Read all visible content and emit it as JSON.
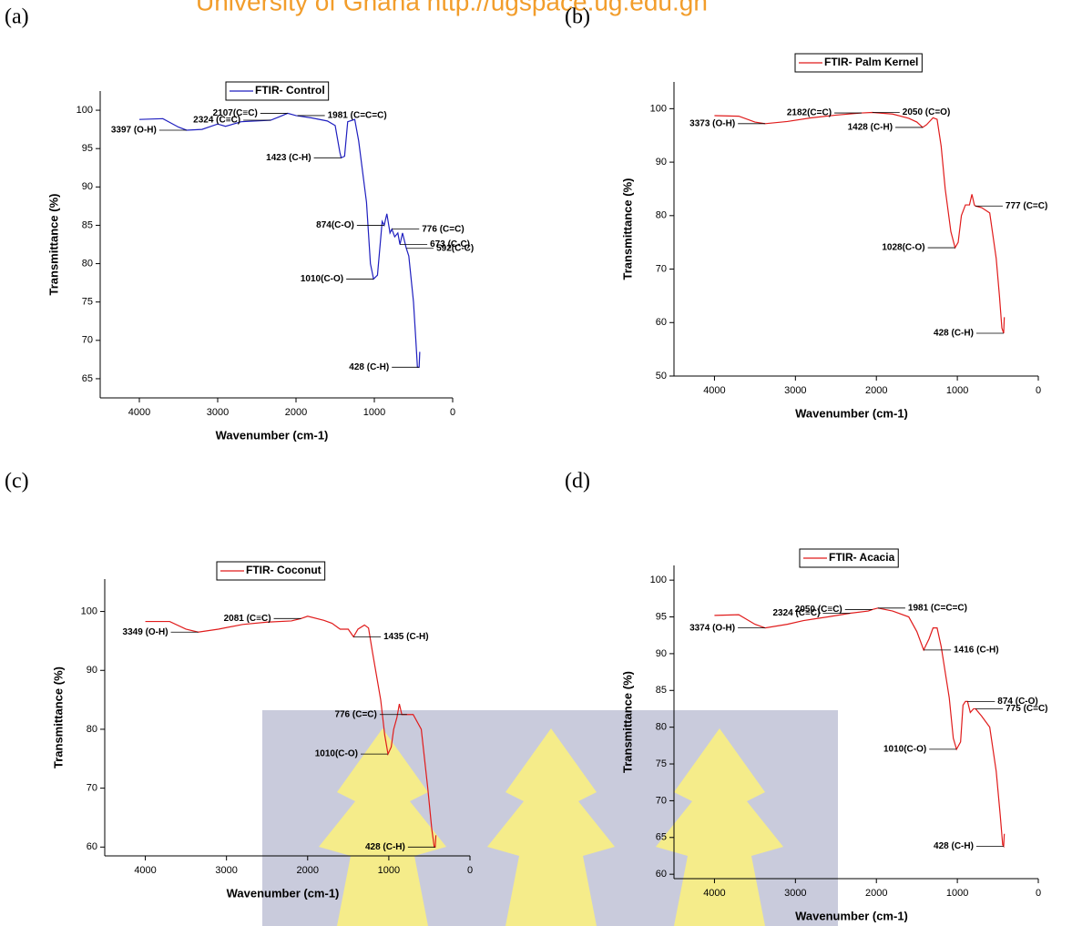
{
  "watermark": "University of Ghana http://ugspace.ug.edu.gh",
  "chart_data": [
    {
      "type": "line",
      "panel": "(a)",
      "xlabel": "Wavenumber (cm-1)",
      "ylabel": "Transmittance (%)",
      "xlim": [
        4500,
        0
      ],
      "xticks": [
        4000,
        3000,
        2000,
        1000,
        0
      ],
      "ylim": [
        62.5,
        102.5
      ],
      "yticks": [
        65,
        70,
        75,
        80,
        85,
        90,
        95,
        100
      ],
      "x": [
        4000,
        3700,
        3500,
        3397,
        3200,
        3000,
        2900,
        2700,
        2324,
        2200,
        2107,
        2000,
        1800,
        1600,
        1500,
        1440,
        1423,
        1380,
        1340,
        1250,
        1200,
        1100,
        1050,
        1010,
        960,
        930,
        900,
        874,
        840,
        800,
        776,
        740,
        700,
        673,
        640,
        592,
        560,
        500,
        470,
        450,
        428,
        420
      ],
      "series": [
        {
          "name": "FTIR- Control",
          "color": "#1f1fbf",
          "values": [
            98.8,
            98.9,
            97.8,
            97.4,
            97.5,
            98.2,
            97.9,
            98.5,
            98.7,
            99.2,
            99.6,
            99.3,
            99.0,
            98.6,
            98.0,
            94.5,
            93.8,
            94.0,
            98.5,
            98.8,
            96.0,
            88.0,
            80.0,
            78.0,
            78.5,
            82.0,
            85.5,
            85.0,
            86.5,
            84.0,
            84.5,
            83.5,
            84.0,
            82.5,
            84.0,
            82.0,
            81.0,
            75.0,
            70.0,
            66.5,
            66.5,
            68.5
          ]
        }
      ],
      "annotations": [
        {
          "text": "3397 (O-H)",
          "x": 3397,
          "y": 97.4,
          "anchor": "left"
        },
        {
          "text": "2107(C≡C)",
          "x": 2107,
          "y": 99.6,
          "anchor": "left"
        },
        {
          "text": "2324 (C≡C)",
          "x": 2324,
          "y": 98.7,
          "anchor": "left"
        },
        {
          "text": "1981 (C=C=C)",
          "x": 1981,
          "y": 99.3,
          "anchor": "right"
        },
        {
          "text": "1423 (C-H)",
          "x": 1423,
          "y": 93.8,
          "anchor": "left"
        },
        {
          "text": "874(C-O)",
          "x": 874,
          "y": 85.0,
          "anchor": "left"
        },
        {
          "text": "776 (C=C)",
          "x": 776,
          "y": 84.5,
          "anchor": "right"
        },
        {
          "text": "673 (C-C)",
          "x": 673,
          "y": 82.5,
          "anchor": "right"
        },
        {
          "text": "592(C-C)",
          "x": 592,
          "y": 82.0,
          "anchor": "right"
        },
        {
          "text": "1010(C-O)",
          "x": 1010,
          "y": 78.0,
          "anchor": "left"
        },
        {
          "text": "428 (C-H)",
          "x": 428,
          "y": 66.5,
          "anchor": "left"
        }
      ]
    },
    {
      "type": "line",
      "panel": "(b)",
      "xlabel": "Wavenumber (cm-1)",
      "ylabel": "Transmittance (%)",
      "xlim": [
        4500,
        0
      ],
      "xticks": [
        4000,
        3000,
        2000,
        1000,
        0
      ],
      "ylim": [
        50,
        105
      ],
      "yticks": [
        50,
        60,
        70,
        80,
        90,
        100
      ],
      "x": [
        4000,
        3700,
        3500,
        3373,
        3100,
        2800,
        2500,
        2182,
        2050,
        1800,
        1600,
        1500,
        1428,
        1380,
        1300,
        1250,
        1200,
        1150,
        1080,
        1028,
        990,
        950,
        900,
        850,
        820,
        790,
        777,
        700,
        600,
        520,
        480,
        450,
        428,
        420
      ],
      "series": [
        {
          "name": "FTIR- Palm Kernel",
          "color": "#e01b1b",
          "values": [
            98.7,
            98.6,
            97.5,
            97.2,
            97.6,
            98.3,
            98.8,
            99.2,
            99.3,
            99.0,
            98.2,
            97.5,
            96.5,
            97.0,
            98.3,
            98.0,
            93.0,
            85.0,
            77.0,
            74.0,
            75.0,
            80.0,
            82.0,
            82.0,
            84.0,
            82.0,
            81.8,
            81.5,
            80.5,
            72.0,
            65.0,
            59.0,
            58.0,
            61.0
          ]
        }
      ],
      "annotations": [
        {
          "text": "3373 (O-H)",
          "x": 3373,
          "y": 97.2,
          "anchor": "left"
        },
        {
          "text": "2182(C=C)",
          "x": 2182,
          "y": 99.2,
          "anchor": "left"
        },
        {
          "text": "2050 (C=O)",
          "x": 2050,
          "y": 99.3,
          "anchor": "right"
        },
        {
          "text": "1428 (C-H)",
          "x": 1428,
          "y": 96.5,
          "anchor": "left"
        },
        {
          "text": "777 (C=C)",
          "x": 777,
          "y": 81.8,
          "anchor": "right"
        },
        {
          "text": "1028(C-O)",
          "x": 1028,
          "y": 74.0,
          "anchor": "left"
        },
        {
          "text": "428 (C-H)",
          "x": 428,
          "y": 58.0,
          "anchor": "left"
        }
      ]
    },
    {
      "type": "line",
      "panel": "(c)",
      "xlabel": "Wavenumber (cm-1)",
      "ylabel": "Transmittance (%)",
      "xlim": [
        4500,
        0
      ],
      "xticks": [
        4000,
        3000,
        2000,
        1000,
        0
      ],
      "ylim": [
        58.5,
        105.5
      ],
      "yticks": [
        60,
        70,
        80,
        90,
        100
      ],
      "x": [
        4000,
        3700,
        3500,
        3349,
        3100,
        2800,
        2500,
        2200,
        2081,
        2000,
        1800,
        1700,
        1600,
        1500,
        1435,
        1380,
        1300,
        1250,
        1200,
        1100,
        1050,
        1010,
        970,
        940,
        900,
        870,
        840,
        776,
        700,
        600,
        520,
        470,
        440,
        428,
        420
      ],
      "series": [
        {
          "name": "FTIR- Coconut",
          "color": "#e01b1b",
          "values": [
            98.3,
            98.3,
            97.0,
            96.5,
            97.0,
            97.8,
            98.2,
            98.4,
            98.8,
            99.2,
            98.5,
            98.0,
            97.0,
            97.0,
            95.7,
            97.0,
            97.7,
            97.2,
            93.0,
            85.0,
            79.0,
            75.8,
            77.0,
            80.0,
            82.0,
            84.3,
            82.5,
            82.5,
            82.5,
            80.0,
            70.0,
            63.0,
            60.0,
            60.0,
            62.0
          ]
        }
      ],
      "annotations": [
        {
          "text": "3349 (O-H)",
          "x": 3349,
          "y": 96.5,
          "anchor": "left"
        },
        {
          "text": "2081 (C≡C)",
          "x": 2081,
          "y": 98.8,
          "anchor": "left"
        },
        {
          "text": "1435 (C-H)",
          "x": 1435,
          "y": 95.7,
          "anchor": "right"
        },
        {
          "text": "776 (C=C)",
          "x": 776,
          "y": 82.5,
          "anchor": "left"
        },
        {
          "text": "1010(C-O)",
          "x": 1010,
          "y": 75.8,
          "anchor": "left"
        },
        {
          "text": "428 (C-H)",
          "x": 428,
          "y": 60.0,
          "anchor": "left"
        }
      ]
    },
    {
      "type": "line",
      "panel": "(d)",
      "xlabel": "Wavenumber (cm-1)",
      "ylabel": "Transmittance (%)",
      "xlim": [
        4500,
        0
      ],
      "xticks": [
        4000,
        3000,
        2000,
        1000,
        0
      ],
      "ylim": [
        59.4,
        102
      ],
      "yticks": [
        60,
        65,
        70,
        75,
        80,
        85,
        90,
        95,
        100
      ],
      "x": [
        4000,
        3700,
        3500,
        3374,
        3100,
        2900,
        2600,
        2324,
        2100,
        2050,
        1981,
        1800,
        1600,
        1500,
        1416,
        1350,
        1300,
        1250,
        1200,
        1100,
        1050,
        1010,
        960,
        930,
        900,
        874,
        840,
        800,
        775,
        700,
        600,
        520,
        470,
        440,
        428,
        420
      ],
      "series": [
        {
          "name": "FTIR- Acacia",
          "color": "#e01b1b",
          "values": [
            95.2,
            95.3,
            94.0,
            93.5,
            94.0,
            94.5,
            95.0,
            95.5,
            95.8,
            96.0,
            96.2,
            95.8,
            95.0,
            93.0,
            90.5,
            92.0,
            93.5,
            93.5,
            91.0,
            84.0,
            78.5,
            77.0,
            78.0,
            83.0,
            83.5,
            83.5,
            82.0,
            82.5,
            82.5,
            81.5,
            80.0,
            74.0,
            68.0,
            64.0,
            63.8,
            65.5
          ]
        }
      ],
      "annotations": [
        {
          "text": "3374 (O-H)",
          "x": 3374,
          "y": 93.5,
          "anchor": "left"
        },
        {
          "text": "2324 (C≡C)",
          "x": 2324,
          "y": 95.5,
          "anchor": "left"
        },
        {
          "text": "1981 (C=C=C)",
          "x": 1981,
          "y": 96.2,
          "anchor": "right"
        },
        {
          "text": "2050 (C≡C)",
          "x": 2050,
          "y": 96.0,
          "anchor": "left"
        },
        {
          "text": "1416 (C-H)",
          "x": 1416,
          "y": 90.5,
          "anchor": "right"
        },
        {
          "text": "874 (C-O)",
          "x": 874,
          "y": 83.5,
          "anchor": "right"
        },
        {
          "text": "775 (C=C)",
          "x": 775,
          "y": 82.5,
          "anchor": "right"
        },
        {
          "text": "1010(C-O)",
          "x": 1010,
          "y": 77.0,
          "anchor": "left"
        },
        {
          "text": "428 (C-H)",
          "x": 428,
          "y": 63.8,
          "anchor": "left"
        }
      ]
    }
  ]
}
